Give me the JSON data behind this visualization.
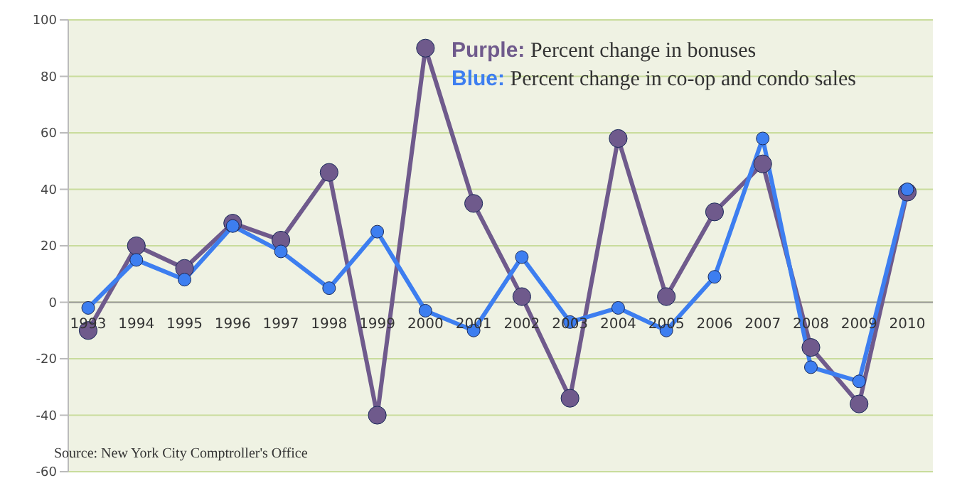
{
  "chart_data": {
    "type": "line",
    "categories": [
      "1993",
      "1994",
      "1995",
      "1996",
      "1997",
      "1998",
      "1999",
      "2000",
      "2001",
      "2002",
      "2003",
      "2004",
      "2005",
      "2006",
      "2007",
      "2008",
      "2009",
      "2010"
    ],
    "series": [
      {
        "name": "Purple: Percent change in bonuses",
        "color": "#6f5a8c",
        "values": [
          -10,
          20,
          12,
          28,
          22,
          46,
          -40,
          90,
          35,
          2,
          -34,
          58,
          2,
          32,
          49,
          -16,
          -36,
          39
        ]
      },
      {
        "name": "Blue: Percent change in co-op and condo sales",
        "color": "#3d7ef0",
        "values": [
          -2,
          15,
          8,
          27,
          18,
          5,
          25,
          -3,
          -10,
          16,
          -7,
          -2,
          -10,
          9,
          58,
          -23,
          -28,
          40
        ]
      }
    ],
    "ylim": [
      -60,
      100
    ],
    "yticks": [
      -60,
      -40,
      -20,
      0,
      20,
      40,
      60,
      80,
      100
    ],
    "grid": "y",
    "legend": "top right",
    "marker": "circle",
    "line_style": "solid",
    "annotations": [
      "Source: New York City Comptroller's Office"
    ]
  }
}
